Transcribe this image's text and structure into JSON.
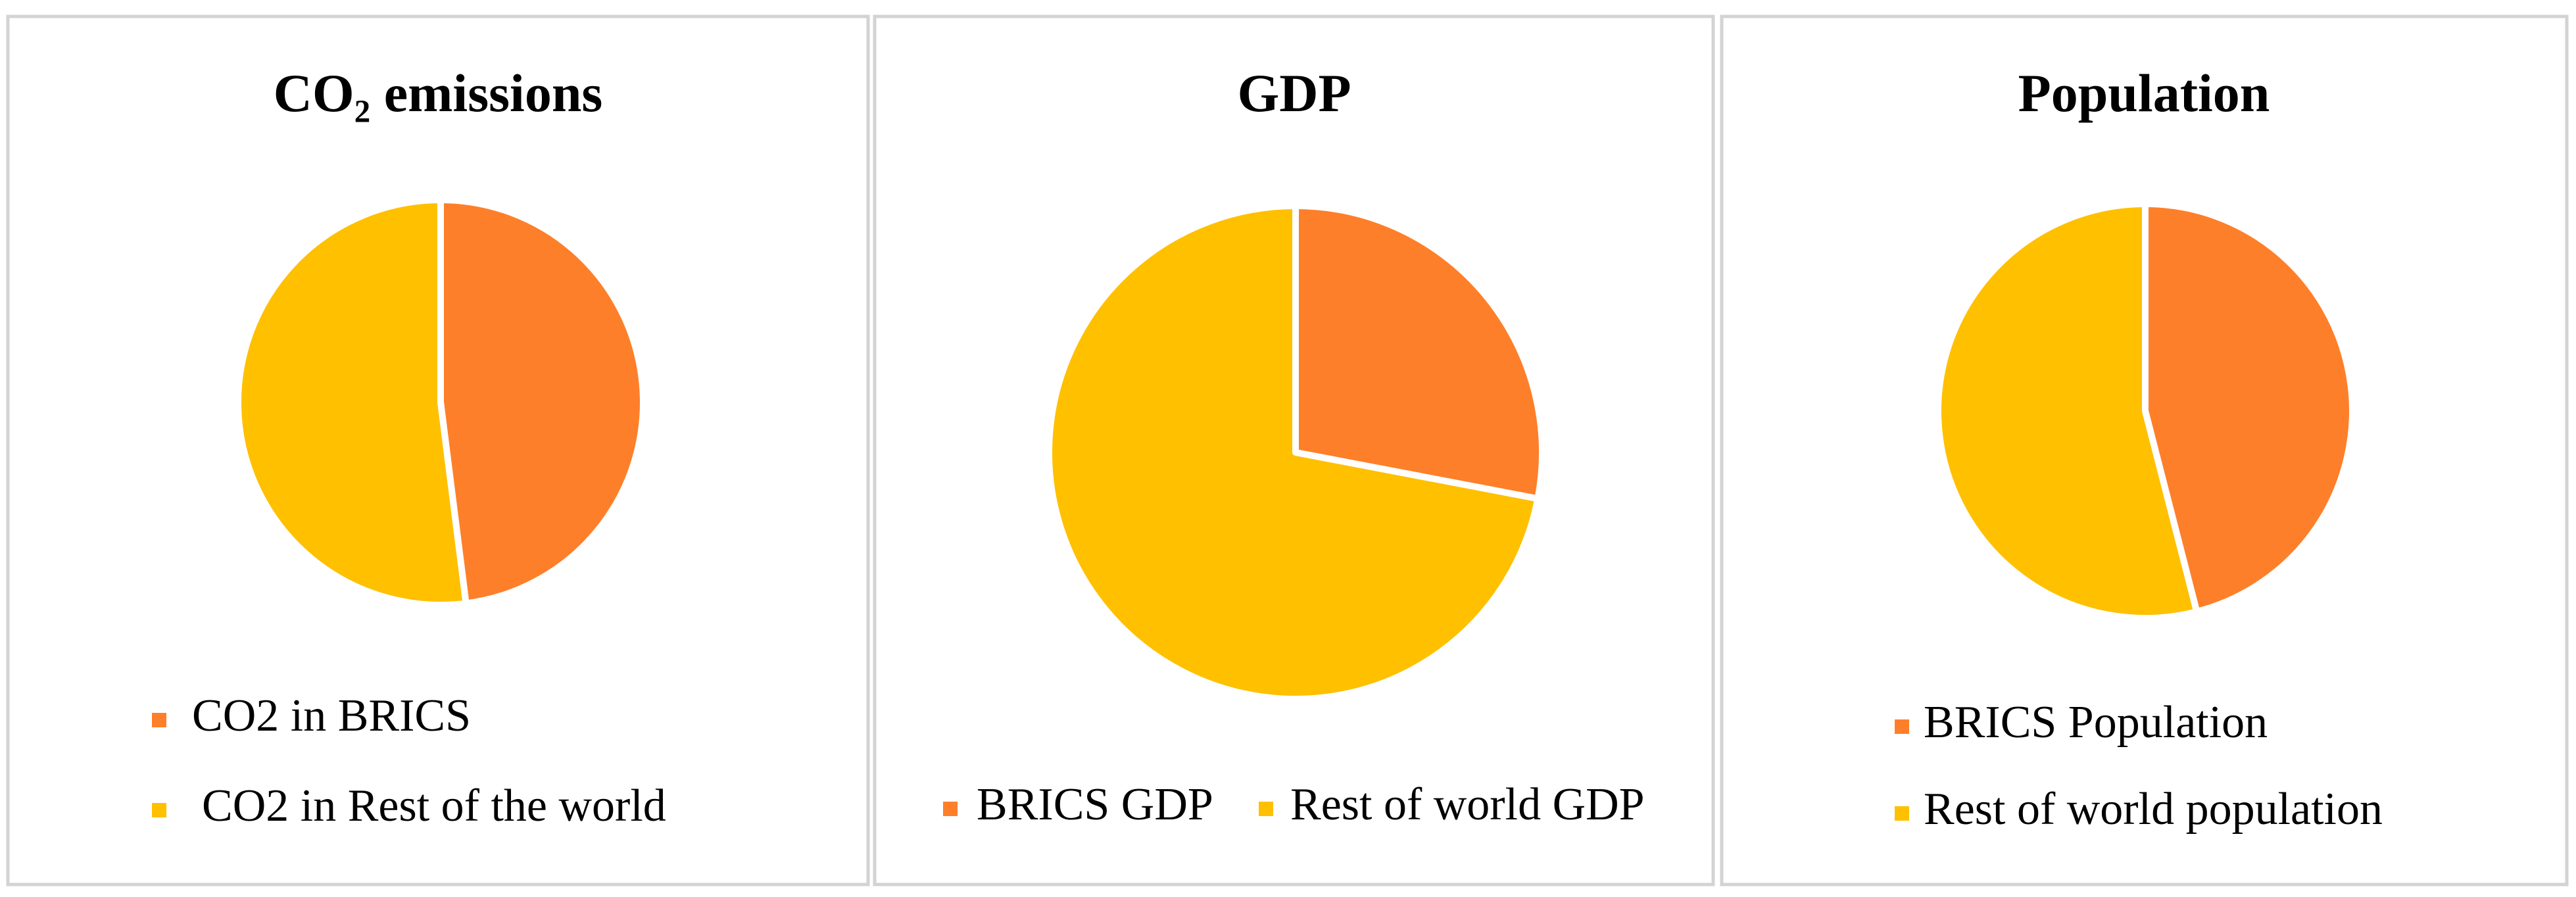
{
  "chart_data": [
    {
      "type": "pie",
      "title": "CO₂ emissions",
      "labels": [
        "CO2 in BRICS",
        "CO2 in Rest of the world"
      ],
      "values": [
        48,
        52
      ],
      "colors": [
        "#fe7f2a",
        "#ffc000"
      ]
    },
    {
      "type": "pie",
      "title": "GDP",
      "labels": [
        "BRICS GDP",
        "Rest of world GDP"
      ],
      "values": [
        28,
        72
      ],
      "colors": [
        "#fe7f2a",
        "#ffc000"
      ]
    },
    {
      "type": "pie",
      "title": "Population",
      "labels": [
        "BRICS Population",
        "Rest of world population"
      ],
      "values": [
        46,
        54
      ],
      "colors": [
        "#fe7f2a",
        "#ffc000"
      ]
    }
  ]
}
